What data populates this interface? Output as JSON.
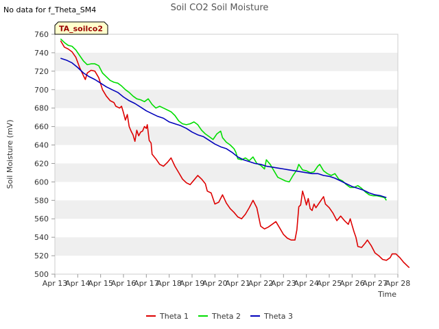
{
  "page": {
    "title": "Soil CO2 Soil Moisture",
    "no_data_note": "No data for f_Theta_SM4",
    "site_label": "TA_soilco2"
  },
  "colors": {
    "band": "#efefef",
    "frame": "#cccccc",
    "theta1": "#dd0000",
    "theta2": "#00dd00",
    "theta3": "#0000bb",
    "site_label_bg": "#ffffcc",
    "site_label_text": "#990000"
  },
  "chart_data": {
    "type": "line",
    "title": "Soil CO2 Soil Moisture",
    "xlabel": "Time",
    "ylabel": "Soil Moisture (mV)",
    "xlim": [
      "Apr 13",
      "Apr 28"
    ],
    "ylim": [
      500,
      760
    ],
    "x_ticks": [
      "Apr 13",
      "Apr 14",
      "Apr 15",
      "Apr 16",
      "Apr 17",
      "Apr 18",
      "Apr 19",
      "Apr 20",
      "Apr 21",
      "Apr 22",
      "Apr 23",
      "Apr 24",
      "Apr 25",
      "Apr 26",
      "Apr 27",
      "Apr 28"
    ],
    "y_ticks": [
      500,
      520,
      540,
      560,
      580,
      600,
      620,
      640,
      660,
      680,
      700,
      720,
      740,
      760
    ],
    "grid": "alternating horizontal bands",
    "legend_position": "bottom",
    "series": [
      {
        "name": "Theta 1",
        "color_key": "theta1",
        "points": [
          [
            "Apr 13 06:00",
            753
          ],
          [
            "Apr 13 10:00",
            746
          ],
          [
            "Apr 13 14:00",
            744
          ],
          [
            "Apr 13 18:00",
            741
          ],
          [
            "Apr 13 22:00",
            735
          ],
          [
            "Apr 14 02:00",
            724
          ],
          [
            "Apr 14 06:00",
            715
          ],
          [
            "Apr 14 08:00",
            711
          ],
          [
            "Apr 14 10:00",
            718
          ],
          [
            "Apr 14 14:00",
            721
          ],
          [
            "Apr 14 18:00",
            720
          ],
          [
            "Apr 14 22:00",
            713
          ],
          [
            "Apr 15 02:00",
            700
          ],
          [
            "Apr 15 06:00",
            693
          ],
          [
            "Apr 15 10:00",
            688
          ],
          [
            "Apr 15 14:00",
            686
          ],
          [
            "Apr 15 16:00",
            682
          ],
          [
            "Apr 15 20:00",
            680
          ],
          [
            "Apr 15 22:00",
            682
          ],
          [
            "Apr 16 00:00",
            675
          ],
          [
            "Apr 16 02:00",
            667
          ],
          [
            "Apr 16 04:00",
            673
          ],
          [
            "Apr 16 06:00",
            660
          ],
          [
            "Apr 16 08:00",
            655
          ],
          [
            "Apr 16 10:00",
            651
          ],
          [
            "Apr 16 12:00",
            644
          ],
          [
            "Apr 16 14:00",
            656
          ],
          [
            "Apr 16 16:00",
            650
          ],
          [
            "Apr 16 18:00",
            654
          ],
          [
            "Apr 16 20:00",
            655
          ],
          [
            "Apr 16 22:00",
            660
          ],
          [
            "Apr 17 00:00",
            658
          ],
          [
            "Apr 17 01:00",
            662
          ],
          [
            "Apr 17 03:00",
            645
          ],
          [
            "Apr 17 05:00",
            642
          ],
          [
            "Apr 17 06:00",
            630
          ],
          [
            "Apr 17 10:00",
            625
          ],
          [
            "Apr 17 14:00",
            619
          ],
          [
            "Apr 17 18:00",
            617
          ],
          [
            "Apr 17 22:00",
            621
          ],
          [
            "Apr 18 02:00",
            626
          ],
          [
            "Apr 18 06:00",
            617
          ],
          [
            "Apr 18 10:00",
            610
          ],
          [
            "Apr 18 14:00",
            603
          ],
          [
            "Apr 18 18:00",
            599
          ],
          [
            "Apr 18 22:00",
            597
          ],
          [
            "Apr 19 02:00",
            602
          ],
          [
            "Apr 19 06:00",
            607
          ],
          [
            "Apr 19 10:00",
            603
          ],
          [
            "Apr 19 14:00",
            598
          ],
          [
            "Apr 19 16:00",
            590
          ],
          [
            "Apr 19 20:00",
            588
          ],
          [
            "Apr 20 00:00",
            576
          ],
          [
            "Apr 20 04:00",
            578
          ],
          [
            "Apr 20 08:00",
            586
          ],
          [
            "Apr 20 12:00",
            577
          ],
          [
            "Apr 20 16:00",
            571
          ],
          [
            "Apr 20 20:00",
            567
          ],
          [
            "Apr 21 00:00",
            562
          ],
          [
            "Apr 21 04:00",
            560
          ],
          [
            "Apr 21 08:00",
            565
          ],
          [
            "Apr 21 12:00",
            572
          ],
          [
            "Apr 21 16:00",
            580
          ],
          [
            "Apr 21 20:00",
            572
          ],
          [
            "Apr 22 00:00",
            552
          ],
          [
            "Apr 22 04:00",
            549
          ],
          [
            "Apr 22 08:00",
            551
          ],
          [
            "Apr 22 12:00",
            554
          ],
          [
            "Apr 22 16:00",
            557
          ],
          [
            "Apr 22 20:00",
            550
          ],
          [
            "Apr 23 00:00",
            543
          ],
          [
            "Apr 23 04:00",
            539
          ],
          [
            "Apr 23 08:00",
            537
          ],
          [
            "Apr 23 12:00",
            537
          ],
          [
            "Apr 23 14:00",
            548
          ],
          [
            "Apr 23 16:00",
            573
          ],
          [
            "Apr 23 18:00",
            575
          ],
          [
            "Apr 23 20:00",
            590
          ],
          [
            "Apr 23 22:00",
            583
          ],
          [
            "Apr 24 00:00",
            575
          ],
          [
            "Apr 24 02:00",
            582
          ],
          [
            "Apr 24 04:00",
            571
          ],
          [
            "Apr 24 06:00",
            569
          ],
          [
            "Apr 24 08:00",
            576
          ],
          [
            "Apr 24 10:00",
            572
          ],
          [
            "Apr 24 14:00",
            578
          ],
          [
            "Apr 24 18:00",
            584
          ],
          [
            "Apr 24 20:00",
            576
          ],
          [
            "Apr 25 00:00",
            572
          ],
          [
            "Apr 25 04:00",
            566
          ],
          [
            "Apr 25 08:00",
            558
          ],
          [
            "Apr 25 12:00",
            563
          ],
          [
            "Apr 25 16:00",
            558
          ],
          [
            "Apr 25 20:00",
            554
          ],
          [
            "Apr 25 22:00",
            560
          ],
          [
            "Apr 26 00:00",
            553
          ],
          [
            "Apr 26 02:00",
            546
          ],
          [
            "Apr 26 04:00",
            540
          ],
          [
            "Apr 26 06:00",
            530
          ],
          [
            "Apr 26 10:00",
            529
          ],
          [
            "Apr 26 14:00",
            534
          ],
          [
            "Apr 26 16:00",
            537
          ],
          [
            "Apr 26 20:00",
            531
          ],
          [
            "Apr 27 00:00",
            523
          ],
          [
            "Apr 27 04:00",
            520
          ],
          [
            "Apr 27 08:00",
            516
          ],
          [
            "Apr 27 12:00",
            515
          ],
          [
            "Apr 27 16:00",
            518
          ],
          [
            "Apr 27 18:00",
            522
          ],
          [
            "Apr 27 22:00",
            522
          ],
          [
            "Apr 28 02:00",
            518
          ],
          [
            "Apr 28 06:00",
            513
          ],
          [
            "Apr 28 10:00",
            509
          ],
          [
            "Apr 28 12:00",
            507
          ]
        ]
      },
      {
        "name": "Theta 2",
        "color_key": "theta2",
        "points": [
          [
            "Apr 13 06:00",
            755
          ],
          [
            "Apr 13 10:00",
            751
          ],
          [
            "Apr 13 14:00",
            748
          ],
          [
            "Apr 13 18:00",
            747
          ],
          [
            "Apr 13 22:00",
            743
          ],
          [
            "Apr 14 02:00",
            737
          ],
          [
            "Apr 14 06:00",
            731
          ],
          [
            "Apr 14 10:00",
            727
          ],
          [
            "Apr 14 14:00",
            728
          ],
          [
            "Apr 14 18:00",
            728
          ],
          [
            "Apr 14 22:00",
            726
          ],
          [
            "Apr 15 02:00",
            718
          ],
          [
            "Apr 15 06:00",
            714
          ],
          [
            "Apr 15 10:00",
            710
          ],
          [
            "Apr 15 14:00",
            708
          ],
          [
            "Apr 15 18:00",
            707
          ],
          [
            "Apr 15 22:00",
            704
          ],
          [
            "Apr 16 02:00",
            700
          ],
          [
            "Apr 16 06:00",
            697
          ],
          [
            "Apr 16 10:00",
            693
          ],
          [
            "Apr 16 14:00",
            690
          ],
          [
            "Apr 16 18:00",
            689
          ],
          [
            "Apr 16 22:00",
            687
          ],
          [
            "Apr 17 02:00",
            690
          ],
          [
            "Apr 17 06:00",
            684
          ],
          [
            "Apr 17 10:00",
            680
          ],
          [
            "Apr 17 14:00",
            682
          ],
          [
            "Apr 17 18:00",
            680
          ],
          [
            "Apr 17 22:00",
            678
          ],
          [
            "Apr 18 02:00",
            676
          ],
          [
            "Apr 18 06:00",
            672
          ],
          [
            "Apr 18 10:00",
            666
          ],
          [
            "Apr 18 14:00",
            663
          ],
          [
            "Apr 18 18:00",
            662
          ],
          [
            "Apr 18 22:00",
            663
          ],
          [
            "Apr 19 02:00",
            665
          ],
          [
            "Apr 19 06:00",
            662
          ],
          [
            "Apr 19 10:00",
            656
          ],
          [
            "Apr 19 14:00",
            652
          ],
          [
            "Apr 19 18:00",
            649
          ],
          [
            "Apr 19 22:00",
            646
          ],
          [
            "Apr 20 02:00",
            652
          ],
          [
            "Apr 20 06:00",
            655
          ],
          [
            "Apr 20 08:00",
            648
          ],
          [
            "Apr 20 12:00",
            643
          ],
          [
            "Apr 20 16:00",
            640
          ],
          [
            "Apr 20 20:00",
            636
          ],
          [
            "Apr 20 22:00",
            632
          ],
          [
            "Apr 21 00:00",
            625
          ],
          [
            "Apr 21 04:00",
            624
          ],
          [
            "Apr 21 08:00",
            626
          ],
          [
            "Apr 21 12:00",
            623
          ],
          [
            "Apr 21 16:00",
            627
          ],
          [
            "Apr 21 20:00",
            620
          ],
          [
            "Apr 22 00:00",
            618
          ],
          [
            "Apr 22 04:00",
            614
          ],
          [
            "Apr 22 06:00",
            624
          ],
          [
            "Apr 22 10:00",
            619
          ],
          [
            "Apr 22 14:00",
            612
          ],
          [
            "Apr 22 18:00",
            605
          ],
          [
            "Apr 22 22:00",
            603
          ],
          [
            "Apr 23 02:00",
            601
          ],
          [
            "Apr 23 06:00",
            600
          ],
          [
            "Apr 23 10:00",
            607
          ],
          [
            "Apr 23 14:00",
            613
          ],
          [
            "Apr 23 16:00",
            619
          ],
          [
            "Apr 23 20:00",
            613
          ],
          [
            "Apr 24 00:00",
            612
          ],
          [
            "Apr 24 04:00",
            610
          ],
          [
            "Apr 24 08:00",
            611
          ],
          [
            "Apr 24 12:00",
            617
          ],
          [
            "Apr 24 14:00",
            619
          ],
          [
            "Apr 24 18:00",
            612
          ],
          [
            "Apr 24 22:00",
            609
          ],
          [
            "Apr 25 02:00",
            607
          ],
          [
            "Apr 25 06:00",
            609
          ],
          [
            "Apr 25 10:00",
            603
          ],
          [
            "Apr 25 14:00",
            601
          ],
          [
            "Apr 25 18:00",
            597
          ],
          [
            "Apr 25 22:00",
            594
          ],
          [
            "Apr 26 02:00",
            594
          ],
          [
            "Apr 26 06:00",
            596
          ],
          [
            "Apr 26 10:00",
            593
          ],
          [
            "Apr 26 14:00",
            589
          ],
          [
            "Apr 26 18:00",
            586
          ],
          [
            "Apr 26 22:00",
            585
          ],
          [
            "Apr 27 02:00",
            585
          ],
          [
            "Apr 27 06:00",
            584
          ],
          [
            "Apr 27 10:00",
            583
          ],
          [
            "Apr 27 12:00",
            580
          ]
        ]
      },
      {
        "name": "Theta 3",
        "color_key": "theta3",
        "points": [
          [
            "Apr 13 06:00",
            734
          ],
          [
            "Apr 13 12:00",
            732
          ],
          [
            "Apr 13 18:00",
            729
          ],
          [
            "Apr 14 00:00",
            724
          ],
          [
            "Apr 14 06:00",
            718
          ],
          [
            "Apr 14 12:00",
            714
          ],
          [
            "Apr 14 18:00",
            711
          ],
          [
            "Apr 15 00:00",
            707
          ],
          [
            "Apr 15 06:00",
            703
          ],
          [
            "Apr 15 12:00",
            700
          ],
          [
            "Apr 15 18:00",
            697
          ],
          [
            "Apr 16 00:00",
            692
          ],
          [
            "Apr 16 06:00",
            688
          ],
          [
            "Apr 16 12:00",
            685
          ],
          [
            "Apr 16 18:00",
            681
          ],
          [
            "Apr 17 00:00",
            677
          ],
          [
            "Apr 17 06:00",
            674
          ],
          [
            "Apr 17 12:00",
            671
          ],
          [
            "Apr 17 18:00",
            669
          ],
          [
            "Apr 18 00:00",
            665
          ],
          [
            "Apr 18 06:00",
            663
          ],
          [
            "Apr 18 12:00",
            661
          ],
          [
            "Apr 18 18:00",
            658
          ],
          [
            "Apr 19 00:00",
            654
          ],
          [
            "Apr 19 06:00",
            651
          ],
          [
            "Apr 19 12:00",
            649
          ],
          [
            "Apr 19 18:00",
            645
          ],
          [
            "Apr 20 00:00",
            641
          ],
          [
            "Apr 20 06:00",
            638
          ],
          [
            "Apr 20 12:00",
            636
          ],
          [
            "Apr 20 18:00",
            632
          ],
          [
            "Apr 21 00:00",
            627
          ],
          [
            "Apr 21 06:00",
            624
          ],
          [
            "Apr 21 12:00",
            622
          ],
          [
            "Apr 21 18:00",
            620
          ],
          [
            "Apr 22 00:00",
            619
          ],
          [
            "Apr 22 06:00",
            617
          ],
          [
            "Apr 22 12:00",
            616
          ],
          [
            "Apr 22 18:00",
            615
          ],
          [
            "Apr 23 00:00",
            614
          ],
          [
            "Apr 23 06:00",
            613
          ],
          [
            "Apr 23 12:00",
            612
          ],
          [
            "Apr 23 18:00",
            611
          ],
          [
            "Apr 24 00:00",
            610
          ],
          [
            "Apr 24 06:00",
            609
          ],
          [
            "Apr 24 12:00",
            609
          ],
          [
            "Apr 24 18:00",
            607
          ],
          [
            "Apr 25 00:00",
            606
          ],
          [
            "Apr 25 06:00",
            604
          ],
          [
            "Apr 25 12:00",
            601
          ],
          [
            "Apr 25 18:00",
            598
          ],
          [
            "Apr 26 00:00",
            595
          ],
          [
            "Apr 26 06:00",
            593
          ],
          [
            "Apr 26 12:00",
            591
          ],
          [
            "Apr 26 18:00",
            588
          ],
          [
            "Apr 27 00:00",
            586
          ],
          [
            "Apr 27 06:00",
            585
          ],
          [
            "Apr 27 12:00",
            583
          ]
        ]
      }
    ]
  }
}
